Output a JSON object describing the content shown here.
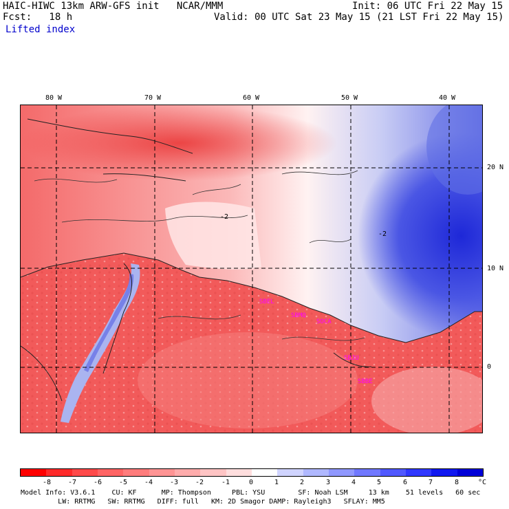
{
  "header": {
    "model_title": "HAIC-HIWC 13km ARW-GFS init   NCAR/MMM",
    "init_time": "Init: 06 UTC Fri 22 May 15",
    "forecast": "Fcst:   18 h",
    "valid_time": "Valid: 00 UTC Sat 23 May 15 (21 LST Fri 22 May 15)",
    "field_name": "Lifted index"
  },
  "axes": {
    "lon_labels": [
      "80 W",
      "70 W",
      "60 W",
      "50 W",
      "40 W"
    ],
    "lat_labels": [
      "20 N",
      "10 N",
      "0"
    ]
  },
  "map": {
    "stations": [
      "SBEL",
      "SBMQ",
      "SBJU",
      "SOCA",
      "SBBE"
    ],
    "contour_label": "-2",
    "colors": {
      "land_low": "#f25a5a",
      "warm_mid": "#f8a0a0",
      "neutral": "#fff4f4",
      "cool": "#aab4f0",
      "cold": "#1e28d8",
      "station": "#ff00ff"
    }
  },
  "legend": {
    "tick_labels": [
      "-8",
      "-7",
      "-6",
      "-5",
      "-4",
      "-3",
      "-2",
      "-1",
      "0",
      "1",
      "2",
      "3",
      "4",
      "5",
      "6",
      "7",
      "8"
    ],
    "unit": "°C",
    "colors": [
      "#ff0000",
      "#ff2a2a",
      "#ff4a4a",
      "#ff6464",
      "#ff7c7c",
      "#ff9494",
      "#ffacac",
      "#ffc4c4",
      "#ffdede",
      "#ffffff",
      "#d0d4ff",
      "#b0b8ff",
      "#9098ff",
      "#7078ff",
      "#5058ff",
      "#3038ff",
      "#1018f0",
      "#0000d8"
    ]
  },
  "footer": {
    "line1": "Model Info: V3.6.1    CU: KF      MP: Thompson     PBL: YSU        SF: Noah LSM     13 km    51 levels   60 sec",
    "line2": "         LW: RRTMG   SW: RRTMG   DIFF: full   KM: 2D Smagor DAMP: Rayleigh3   SFLAY: MM5"
  }
}
